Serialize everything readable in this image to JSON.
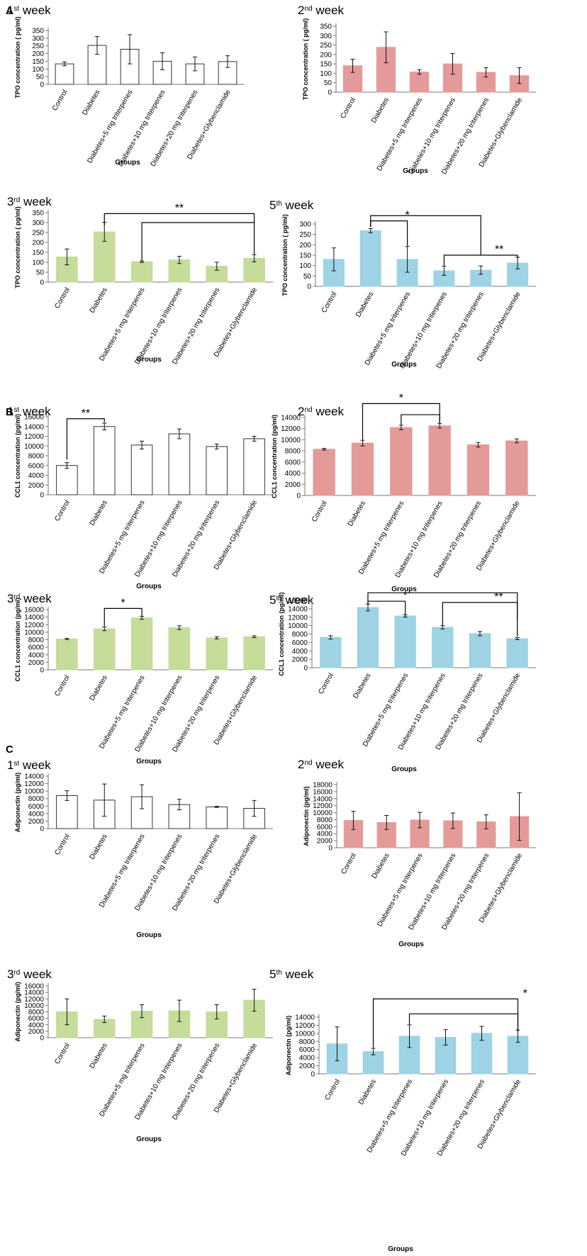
{
  "figure": {
    "panel_labels": [
      "A",
      "B",
      "C"
    ]
  },
  "chart_data": [
    {
      "panel": "A",
      "type": "bar",
      "week_num": "1",
      "week_sup": "st",
      "week_word": " week",
      "color": "#ffffff",
      "categories": [
        "Control",
        "Diabetes",
        "Diabetes+5 mg triterpenes",
        "Diabetes+10 mg triterpenes",
        "Diabetes+20 mg triterpenes",
        "Diabetes+Glybenclamide"
      ],
      "values": [
        133,
        253,
        228,
        150,
        133,
        148
      ],
      "errors": [
        12,
        58,
        95,
        55,
        45,
        38
      ],
      "ylabel": "TPO concentration ( pg/ml)",
      "xlabel": "Groups",
      "ylim": [
        0,
        350
      ],
      "yticks": [
        0,
        50,
        100,
        150,
        200,
        250,
        300,
        350
      ],
      "annotations": []
    },
    {
      "panel": "A",
      "type": "bar",
      "week_num": "2",
      "week_sup": "nd",
      "week_word": " week",
      "color": "#e59a9a",
      "categories": [
        "Control",
        "Diabetes",
        "Diabetes+5 mg triterpenes",
        "Diabetes+10 mg triterpenes",
        "Diabetes+20 mg triterpenes",
        "Diabetes+Glybenclamide"
      ],
      "values": [
        140,
        238,
        107,
        150,
        105,
        88
      ],
      "errors": [
        35,
        82,
        12,
        55,
        25,
        42
      ],
      "ylabel": "TPO concentration ( pg/ml)",
      "xlabel": "Groups",
      "ylim": [
        0,
        350
      ],
      "yticks": [
        0,
        50,
        100,
        150,
        200,
        250,
        300,
        350
      ],
      "annotations": []
    },
    {
      "panel": "A",
      "type": "bar",
      "week_num": "3",
      "week_sup": "rd",
      "week_word": " week",
      "color": "#c5dc9a",
      "categories": [
        "Control",
        "Diabetes",
        "Diabetes+5 mg triterpenes",
        "Diabetes+10 mg triterpenes",
        "Diabetes+20 mg triterpenes",
        "Diabetes+Glybenclamide"
      ],
      "values": [
        127,
        253,
        103,
        112,
        80,
        120
      ],
      "errors": [
        40,
        48,
        4,
        18,
        20,
        18
      ],
      "ylabel": "TPO concentration ( pg/ml)",
      "xlabel": "Groups",
      "ylim": [
        0,
        350
      ],
      "yticks": [
        0,
        50,
        100,
        150,
        200,
        250,
        300,
        350
      ],
      "annotations": [
        {
          "label": "**",
          "from_bar": 1,
          "to_bar": 5,
          "from_drop_value": 285,
          "bar_value": 345,
          "to_drop_value": 300,
          "label_bar": 3
        },
        {
          "from_bar": 2,
          "to_bar": 5,
          "from_drop_value": 110,
          "bar_value": 300,
          "to_drop_value": 142
        }
      ]
    },
    {
      "panel": "A",
      "type": "bar",
      "week_num": "5",
      "week_sup": "th",
      "week_word": " week",
      "color": "#9dd3e5",
      "categories": [
        "Control",
        "Diabetes",
        "Diabetes+5 mg triterpenes",
        "Diabetes+10 mg triterpenes",
        "Diabetes+20 mg triterpenes",
        "Diabetes+Glybenclamide"
      ],
      "values": [
        130,
        268,
        130,
        75,
        78,
        112
      ],
      "errors": [
        55,
        10,
        62,
        22,
        20,
        28
      ],
      "ylabel": "TPO concentration ( pg/ml)",
      "xlabel": "Groups",
      "ylim": [
        0,
        300
      ],
      "yticks": [
        0,
        50,
        100,
        150,
        200,
        250,
        300
      ],
      "annotations": [
        {
          "from_bar": 1,
          "to_bar": 4,
          "from_drop_value": 285,
          "bar_value": 340,
          "to_drop_value": 150
        },
        {
          "label": "*",
          "from_bar": 1,
          "to_bar": 2,
          "from_drop_value": 285,
          "bar_value": 315,
          "to_drop_value": 195,
          "label_bar": 2
        },
        {
          "label": "**",
          "from_bar": 3,
          "to_bar": 5,
          "from_drop_value": 100,
          "bar_value": 150,
          "to_drop_value": 140,
          "label_bar": 4.5
        }
      ]
    },
    {
      "panel": "B",
      "type": "bar",
      "week_num": "1",
      "week_sup": "st",
      "week_word": " week",
      "color": "#ffffff",
      "categories": [
        "Control",
        "Diabetes",
        "Diabetes+5 mg triterpenes",
        "Diabetes+10 mg triterpenes",
        "Diabetes+20 mg triterpenes",
        "Diabetes+Glybenclamide"
      ],
      "values": [
        6000,
        14000,
        10200,
        12500,
        9900,
        11500
      ],
      "errors": [
        600,
        700,
        800,
        1000,
        500,
        500
      ],
      "ylabel": "CCL1 concentration (pg/ml)",
      "xlabel": "Groups",
      "ylim": [
        0,
        16000
      ],
      "yticks": [
        0,
        2000,
        4000,
        6000,
        8000,
        10000,
        12000,
        14000,
        16000
      ],
      "annotations": [
        {
          "label": "**",
          "from_bar": 0,
          "to_bar": 1,
          "from_drop_value": 7200,
          "bar_value": 15600,
          "to_drop_value": 14900,
          "label_bar": 0.5
        }
      ]
    },
    {
      "panel": "B",
      "type": "bar",
      "week_num": "2",
      "week_sup": "nd",
      "week_word": " week",
      "color": "#e59a9a",
      "categories": [
        "Control",
        "Diabetes",
        "Diabetes+5 mg triterpenes",
        "Diabetes+10 mg triterpenes",
        "Diabetes+20 mg triterpenes",
        "Diabetes+Glybenclamide"
      ],
      "values": [
        8300,
        9400,
        12200,
        12500,
        9100,
        9800
      ],
      "errors": [
        150,
        500,
        400,
        400,
        400,
        350
      ],
      "ylabel": "CCL1 concentration (pg/ml)",
      "xlabel": "Groups",
      "ylim": [
        0,
        14000
      ],
      "yticks": [
        0,
        2000,
        4000,
        6000,
        8000,
        10000,
        12000,
        14000
      ],
      "annotations": [
        {
          "label": "*",
          "from_bar": 1,
          "to_bar": 3,
          "from_drop_value": 10000,
          "bar_value": 16500,
          "to_drop_value": 13000,
          "label_bar": 2
        },
        {
          "from_bar": 2,
          "to_bar": 3,
          "from_drop_value": 12700,
          "bar_value": 14500,
          "to_drop_value": 13000
        }
      ]
    },
    {
      "panel": "B",
      "type": "bar",
      "week_num": "3",
      "week_sup": "rd",
      "week_word": " week",
      "color": "#c5dc9a",
      "categories": [
        "Control",
        "Diabetes",
        "Diabetes+5 mg triterpenes",
        "Diabetes+10 mg triterpenes",
        "Diabetes+20 mg triterpenes",
        "Diabetes+Glybenclamide"
      ],
      "values": [
        8200,
        10900,
        13800,
        11200,
        8500,
        8800
      ],
      "errors": [
        150,
        500,
        400,
        500,
        300,
        250
      ],
      "ylabel": "CCL1 concentration (pg/ml)",
      "xlabel": "Groups",
      "ylim": [
        0,
        16000
      ],
      "yticks": [
        0,
        2000,
        4000,
        6000,
        8000,
        10000,
        12000,
        14000,
        16000
      ],
      "annotations": [
        {
          "label": "*",
          "from_bar": 1,
          "to_bar": 2,
          "from_drop_value": 11600,
          "bar_value": 16300,
          "to_drop_value": 14300,
          "label_bar": 1.5
        }
      ]
    },
    {
      "panel": "B",
      "type": "bar",
      "week_num": "5",
      "week_sup": "th",
      "week_word": " week",
      "color": "#9dd3e5",
      "categories": [
        "Control",
        "Diabetes",
        "Diabetes+5 mg triterpenes",
        "Diabetes+10 mg triterpenes",
        "Diabetes+20 mg triterpenes",
        "Diabetes+Glybenclamide"
      ],
      "values": [
        7200,
        14300,
        12300,
        9600,
        8100,
        6900
      ],
      "errors": [
        400,
        800,
        300,
        400,
        500,
        250
      ],
      "ylabel": "CCL1 concentration (pg/ml)",
      "xlabel": "Groups",
      "ylim": [
        0,
        16000
      ],
      "yticks": [
        0,
        2000,
        4000,
        6000,
        8000,
        10000,
        12000,
        14000,
        16000
      ],
      "annotations": [
        {
          "from_bar": 1,
          "to_bar": 5,
          "from_drop_value": 15200,
          "bar_value": 17800,
          "to_drop_value": 11500
        },
        {
          "label": "*",
          "from_bar": 1,
          "to_bar": 2,
          "from_drop_value": 15200,
          "bar_value": 15800,
          "to_drop_value": 12700,
          "label_bar": 2
        },
        {
          "label": "**",
          "from_bar": 3,
          "to_bar": 5,
          "from_drop_value": 10100,
          "bar_value": 15500,
          "to_drop_value": 7400,
          "label_bar": 4.5
        }
      ]
    },
    {
      "panel": "C",
      "type": "bar",
      "week_num": "1",
      "week_sup": "st",
      "week_word": " week",
      "color": "#ffffff",
      "categories": [
        "Control",
        "Diabetes",
        "Diabetes+5 mg triterpenes",
        "Diabetes+10 mg triterpenes",
        "Diabetes+20 mg triterpenes",
        "Diabetes+Glybenclamide"
      ],
      "values": [
        8800,
        7600,
        8500,
        6400,
        5800,
        5400
      ],
      "errors": [
        1300,
        4300,
        3200,
        1400,
        150,
        2100
      ],
      "ylabel": "Adiponectin (pg/ml)",
      "xlabel": "Groups",
      "ylim": [
        0,
        14000
      ],
      "yticks": [
        0,
        2000,
        4000,
        6000,
        8000,
        10000,
        12000,
        14000
      ],
      "annotations": []
    },
    {
      "panel": "C",
      "type": "bar",
      "week_num": "2",
      "week_sup": "nd",
      "week_word": " week",
      "color": "#e59a9a",
      "categories": [
        "Control",
        "Diabetes",
        "Diabetes+5 mg triterpenes",
        "Diabetes+10 mg triterpenes",
        "Diabetes+20 mg triterpenes",
        "Diabetes+Glybenclamide"
      ],
      "values": [
        7800,
        7200,
        7900,
        7700,
        7400,
        8900
      ],
      "errors": [
        2600,
        2000,
        2200,
        2200,
        2000,
        6800
      ],
      "ylabel": "Adiponectin (pg/ml)",
      "xlabel": "Groups",
      "ylim": [
        0,
        18000
      ],
      "yticks": [
        0,
        2000,
        4000,
        6000,
        8000,
        10000,
        12000,
        14000,
        16000,
        18000
      ],
      "annotations": []
    },
    {
      "panel": "C",
      "type": "bar",
      "week_num": "3",
      "week_sup": "rd",
      "week_word": " week",
      "color": "#c5dc9a",
      "categories": [
        "Control",
        "Diabetes",
        "Diabetes+5 mg triterpenes",
        "Diabetes+10 mg triterpenes",
        "Diabetes+20 mg triterpenes",
        "Diabetes+Glybenclamide"
      ],
      "values": [
        8000,
        5700,
        8200,
        8300,
        8000,
        11600
      ],
      "errors": [
        4000,
        1000,
        2000,
        3300,
        2200,
        3400
      ],
      "ylabel": "Adiponectin (pg/ml)",
      "xlabel": "Groups",
      "ylim": [
        0,
        16000
      ],
      "yticks": [
        0,
        2000,
        4000,
        6000,
        8000,
        10000,
        12000,
        14000,
        16000
      ],
      "annotations": []
    },
    {
      "panel": "C",
      "type": "bar",
      "week_num": "5",
      "week_sup": "th",
      "week_word": " week",
      "color": "#9dd3e5",
      "categories": [
        "Control",
        "Diabetes",
        "Diabetes+5 mg triterpenes",
        "Diabetes+10 mg triterpenes",
        "Diabetes+20 mg triterpenes",
        "Diabetes+Glybenclamide"
      ],
      "values": [
        7400,
        5500,
        9300,
        9000,
        10000,
        9300
      ],
      "errors": [
        4200,
        800,
        2800,
        1900,
        1700,
        1500
      ],
      "ylabel": "Adiponectin (pg/ml)",
      "xlabel": "Groups",
      "ylim": [
        0,
        14000
      ],
      "yticks": [
        0,
        2000,
        4000,
        6000,
        8000,
        10000,
        12000,
        14000
      ],
      "annotations": [
        {
          "label": "*",
          "from_bar": 1,
          "to_bar": 5,
          "from_drop_value": 6500,
          "bar_value": 18500,
          "to_drop_value": 10500,
          "label_bar": 5.2
        },
        {
          "from_bar": 2,
          "to_bar": 5,
          "from_drop_value": 12300,
          "bar_value": 14800,
          "to_drop_value": 10500
        }
      ]
    }
  ]
}
